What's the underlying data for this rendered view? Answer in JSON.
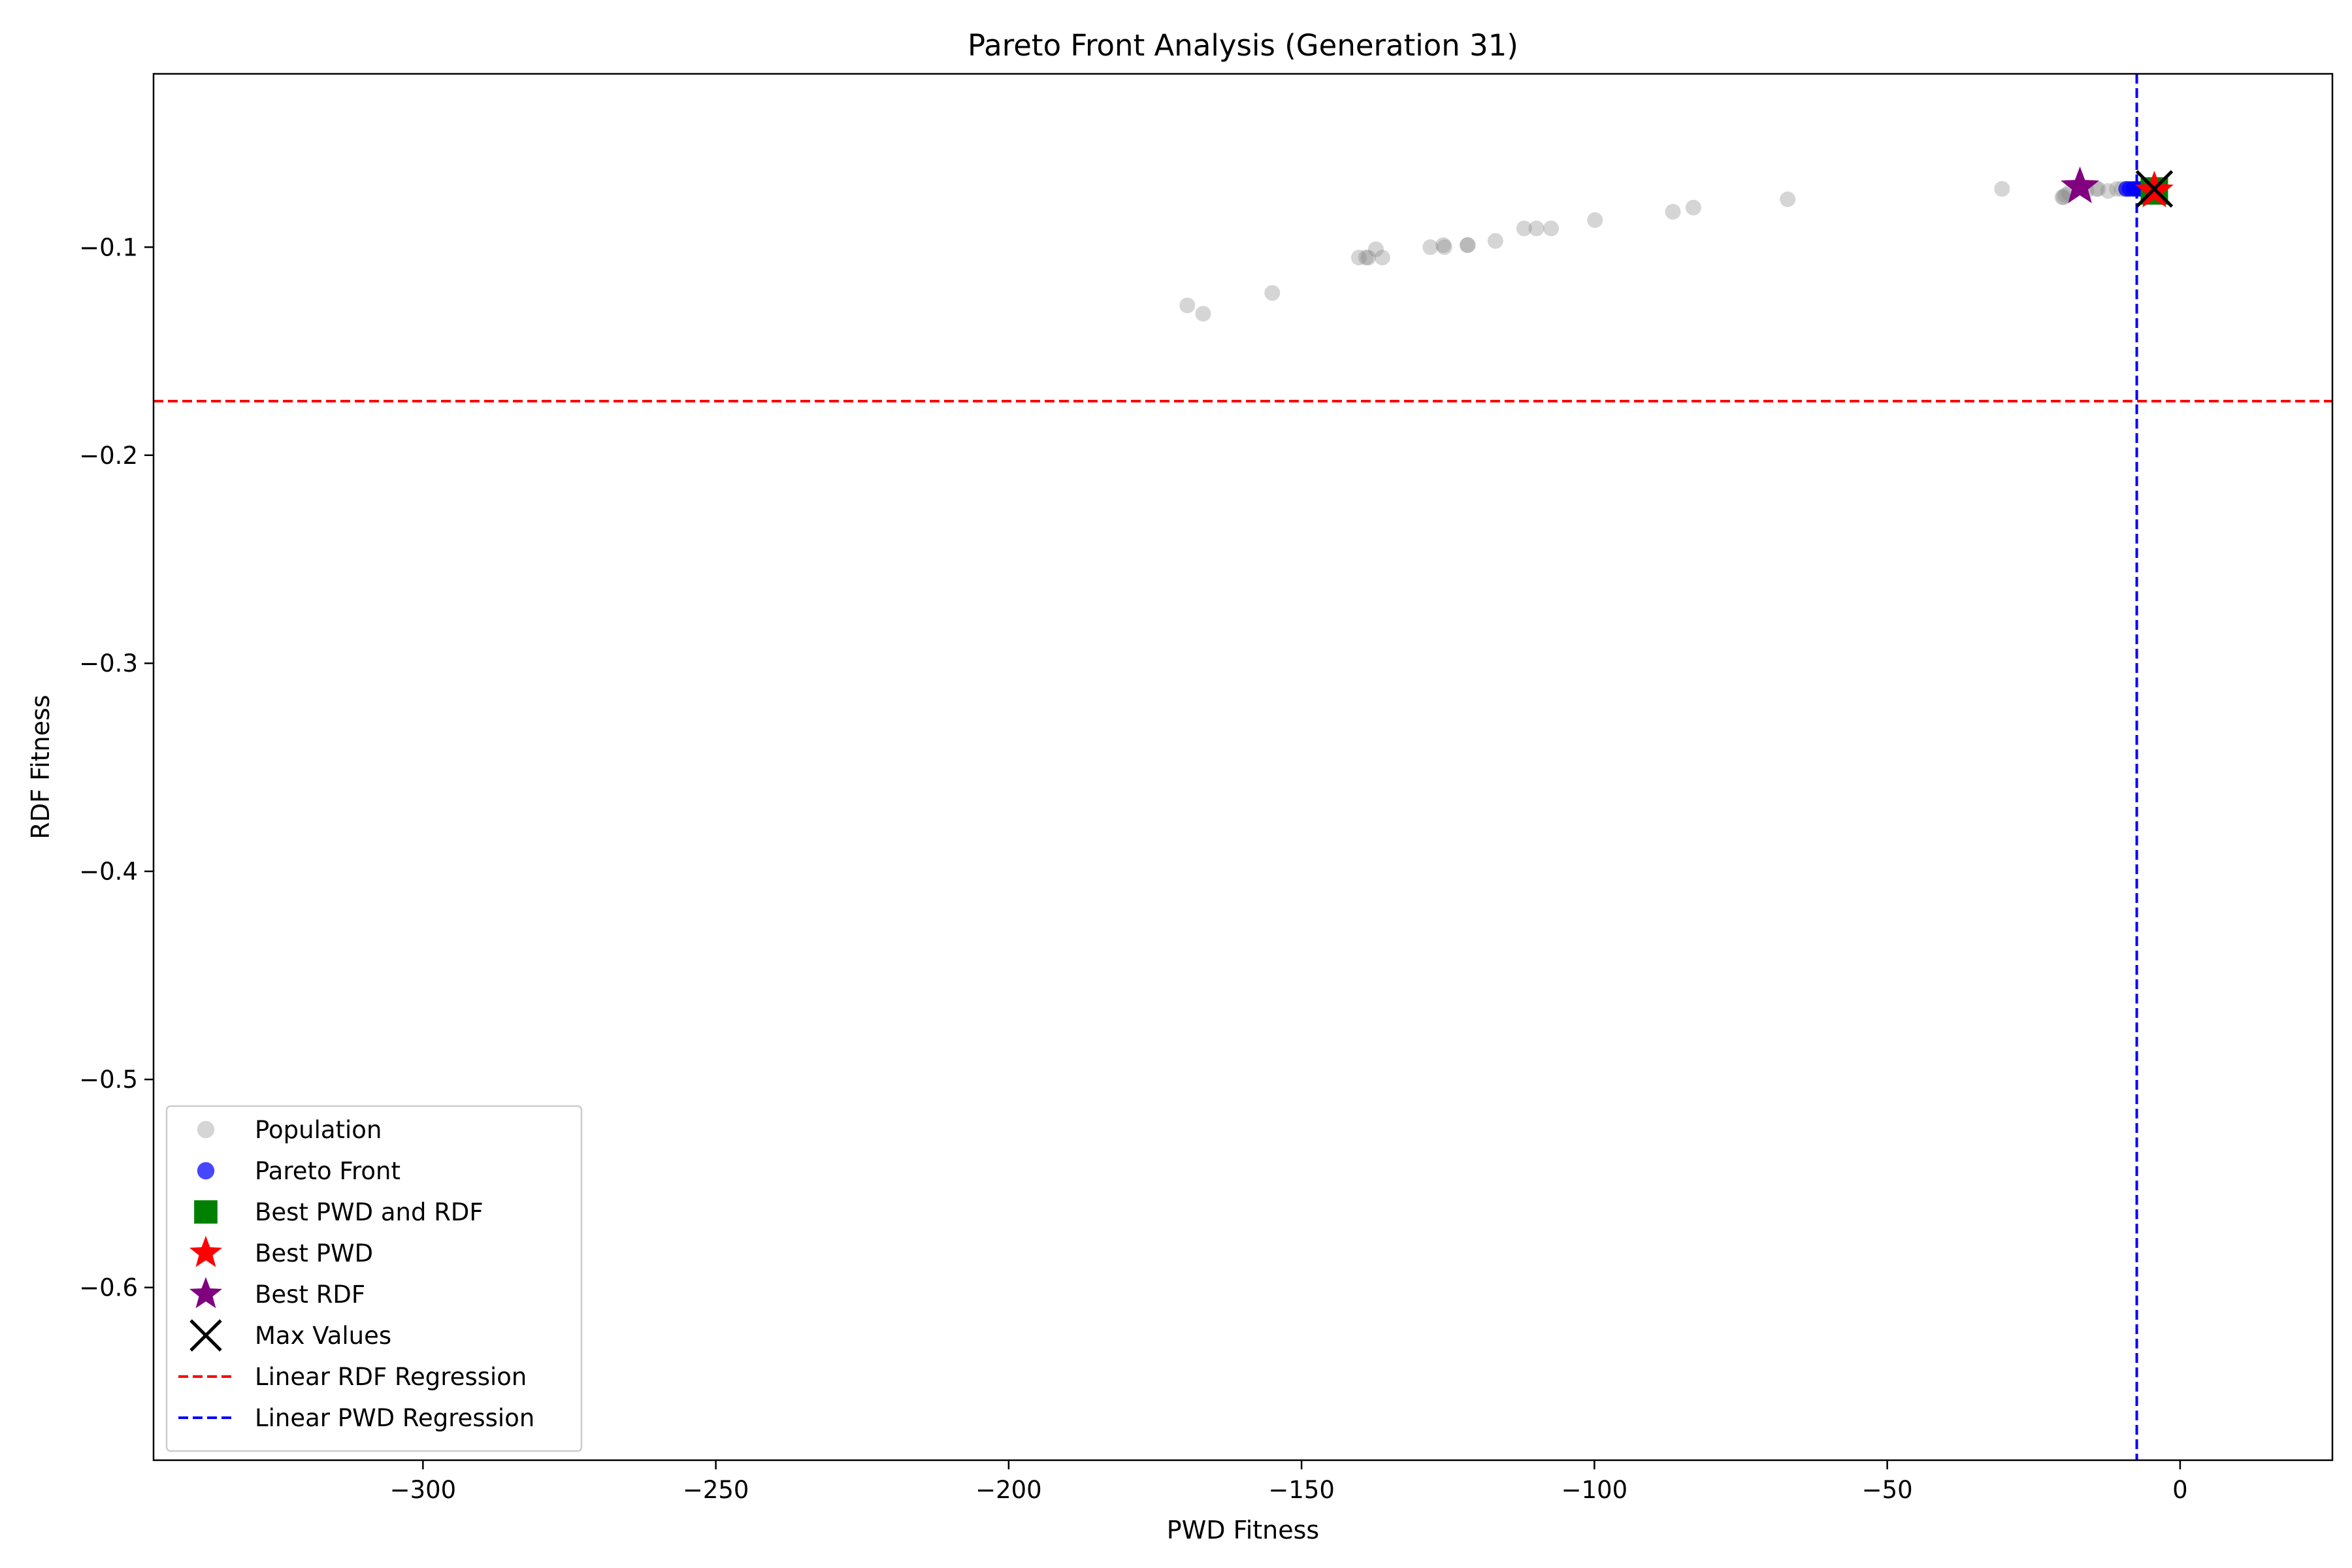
{
  "chart_data": {
    "type": "scatter",
    "title": "Pareto Front Analysis (Generation 31)",
    "xlabel": "PWD Fitness",
    "ylabel": "RDF Fitness",
    "xlim": [
      -346,
      26
    ],
    "ylim": [
      -0.683,
      -0.0167
    ],
    "x_ticks": [
      -300,
      -250,
      -200,
      -150,
      -100,
      -50,
      0
    ],
    "x_tick_labels": [
      "−300",
      "−250",
      "−200",
      "−150",
      "−100",
      "−50",
      "0"
    ],
    "y_ticks": [
      -0.1,
      -0.2,
      -0.3,
      -0.4,
      -0.5,
      -0.6
    ],
    "y_tick_labels": [
      "−0.1",
      "−0.2",
      "−0.3",
      "−0.4",
      "−0.5",
      "−0.6"
    ],
    "grid": false,
    "legend_placement": "lower-left",
    "series": [
      {
        "name": "Population",
        "marker": "circle",
        "color": "#808080",
        "points": [
          [
            -169.5,
            -0.128
          ],
          [
            -166.8,
            -0.132
          ],
          [
            -155.0,
            -0.122
          ],
          [
            -140.2,
            -0.105
          ],
          [
            -139.0,
            -0.105
          ],
          [
            -138.6,
            -0.105
          ],
          [
            -137.3,
            -0.101
          ],
          [
            -136.2,
            -0.105
          ],
          [
            -128.0,
            -0.1
          ],
          [
            -125.8,
            -0.099
          ],
          [
            -125.6,
            -0.1
          ],
          [
            -121.7,
            -0.099
          ],
          [
            -121.6,
            -0.099
          ],
          [
            -116.9,
            -0.097
          ],
          [
            -112.0,
            -0.091
          ],
          [
            -109.9,
            -0.091
          ],
          [
            -107.4,
            -0.091
          ],
          [
            -99.9,
            -0.087
          ],
          [
            -86.6,
            -0.083
          ],
          [
            -83.1,
            -0.081
          ],
          [
            -67.0,
            -0.077
          ],
          [
            -30.4,
            -0.072
          ],
          [
            -20.1,
            -0.076
          ],
          [
            -19.9,
            -0.076
          ],
          [
            -19.6,
            -0.075
          ],
          [
            -19.0,
            -0.074
          ],
          [
            -16.0,
            -0.073
          ],
          [
            -14.3,
            -0.072
          ],
          [
            -14.0,
            -0.072
          ],
          [
            -12.3,
            -0.073
          ],
          [
            -10.8,
            -0.072
          ],
          [
            -10.0,
            -0.072
          ],
          [
            -9.3,
            -0.072
          ],
          [
            -7.8,
            -0.072
          ],
          [
            -5.0,
            -0.072
          ],
          [
            -4.0,
            -0.073
          ]
        ]
      },
      {
        "name": "Pareto Front",
        "marker": "circle",
        "color": "#0000ff",
        "points": [
          [
            -9.2,
            -0.072
          ],
          [
            -8.6,
            -0.072
          ],
          [
            -7.9,
            -0.072
          ],
          [
            -7.3,
            -0.072
          ],
          [
            -6.7,
            -0.072
          ],
          [
            -6.1,
            -0.072
          ],
          [
            -5.5,
            -0.072
          ]
        ]
      },
      {
        "name": "Best PWD and RDF",
        "marker": "square",
        "color": "#008000",
        "points": [
          [
            -4.4,
            -0.073
          ]
        ]
      },
      {
        "name": "Best PWD",
        "marker": "star",
        "color": "#ff0000",
        "points": [
          [
            -4.4,
            -0.073
          ]
        ]
      },
      {
        "name": "Best RDF",
        "marker": "star",
        "color": "#800080",
        "points": [
          [
            -17.1,
            -0.071
          ]
        ]
      },
      {
        "name": "Max Values",
        "marker": "x",
        "color": "#000000",
        "points": [
          [
            -4.4,
            -0.072
          ]
        ]
      }
    ],
    "reference_lines": [
      {
        "name": "Linear RDF Regression",
        "orientation": "horizontal",
        "value": -0.174,
        "color": "#ff0000",
        "dash": "dashed"
      },
      {
        "name": "Linear PWD Regression",
        "orientation": "vertical",
        "value": -7.4,
        "color": "#0000ff",
        "dash": "dashed"
      }
    ]
  }
}
